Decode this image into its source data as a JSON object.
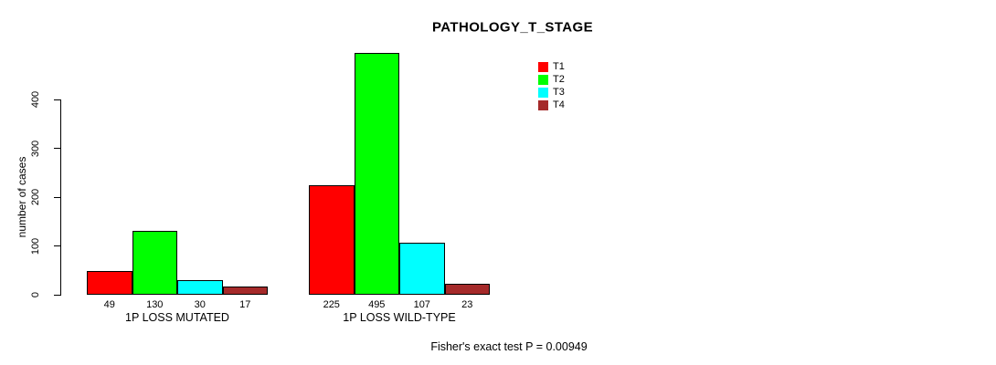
{
  "chart_data": {
    "type": "bar",
    "title": "PATHOLOGY_T_STAGE",
    "xlabel": "",
    "ylabel": "number of cases",
    "ylim": [
      0,
      400
    ],
    "yticks": [
      0,
      100,
      200,
      300,
      400
    ],
    "grid": false,
    "groups": [
      "1P LOSS MUTATED",
      "1P LOSS WILD-TYPE"
    ],
    "series": [
      {
        "name": "T1",
        "color": "#ff0000",
        "values": [
          49,
          225
        ]
      },
      {
        "name": "T2",
        "color": "#00ff00",
        "values": [
          130,
          495
        ]
      },
      {
        "name": "T3",
        "color": "#00ffff",
        "values": [
          30,
          107
        ]
      },
      {
        "name": "T4",
        "color": "#a52a2a",
        "values": [
          17,
          23
        ]
      }
    ],
    "bar_value_labels": [
      [
        49,
        130,
        30,
        17
      ],
      [
        225,
        495,
        107,
        23
      ]
    ],
    "legend_position": "top-right",
    "annotation": "Fisher's exact test P = 0.00949"
  }
}
